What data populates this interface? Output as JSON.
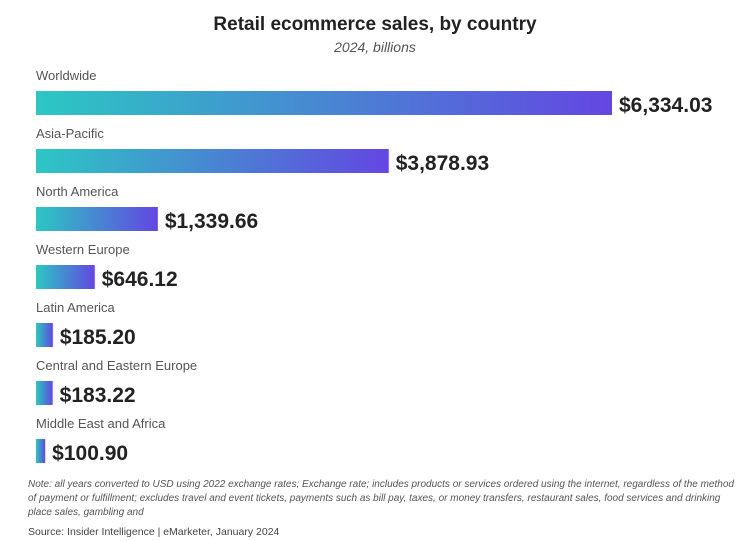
{
  "chart_data": {
    "type": "bar",
    "orientation": "horizontal",
    "title": "Retail ecommerce sales, by country",
    "subtitle": "2024, billions",
    "categories": [
      "Worldwide",
      "Asia-Pacific",
      "North America",
      "Western Europe",
      "Latin America",
      "Central and Eastern Europe",
      "Middle East and Africa"
    ],
    "values": [
      6334.03,
      3878.93,
      1339.66,
      646.12,
      185.2,
      183.22,
      100.9
    ],
    "data_labels": [
      "$6,334.03",
      "$3,878.93",
      "$1,339.66",
      "$646.12",
      "$185.20",
      "$183.22",
      "$100.90"
    ],
    "gradient": [
      "#2cc7c3",
      "#6446e2"
    ],
    "grid": false,
    "legend": "none"
  },
  "note": "Note: all years converted to USD using 2022 exchange rates; Exchange rate; includes products or services ordered using the internet, regardless of the method of payment or fulfillment; excludes travel and event tickets, payments such as bill pay, taxes, or money transfers, restaurant sales, food services and drinking place sales, gambling and",
  "source": "Source: Insider Intelligence | eMarketer, January 2024"
}
